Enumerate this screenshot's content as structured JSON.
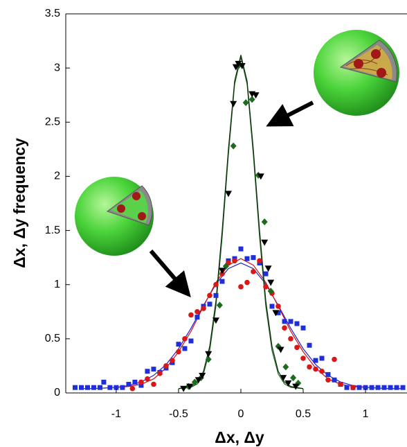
{
  "chart_data": {
    "type": "scatter",
    "xlabel": "Δx, Δy",
    "ylabel": "Δx, Δy frequency",
    "xlim": [
      -1.405,
      1.333
    ],
    "ylim": [
      0,
      3.5
    ],
    "xticks": [
      -1,
      -0.5,
      0,
      0.5,
      1
    ],
    "yticks": [
      0,
      0.5,
      1,
      1.5,
      2,
      2.5,
      3,
      3.5
    ],
    "series": [
      {
        "kind": "line",
        "color": "#1f1fd0",
        "x": [
          -1.3,
          -1.2,
          -1.1,
          -1.0,
          -0.9,
          -0.8,
          -0.7,
          -0.6,
          -0.5,
          -0.4,
          -0.3,
          -0.2,
          -0.1,
          0,
          0.1,
          0.2,
          0.3,
          0.4,
          0.5,
          0.6,
          0.7,
          0.8,
          0.9,
          1.0,
          1.1,
          1.2,
          1.3
        ],
        "values": [
          0.04,
          0.04,
          0.045,
          0.052,
          0.068,
          0.101,
          0.162,
          0.262,
          0.408,
          0.597,
          0.808,
          1.005,
          1.148,
          1.2,
          1.148,
          1.005,
          0.808,
          0.597,
          0.408,
          0.262,
          0.162,
          0.101,
          0.068,
          0.052,
          0.045,
          0.04,
          0.04
        ]
      },
      {
        "kind": "line",
        "color": "#d01010",
        "x": [
          -1.0,
          -0.9,
          -0.8,
          -0.7,
          -0.6,
          -0.5,
          -0.4,
          -0.3,
          -0.2,
          -0.1,
          0,
          0.1,
          0.2,
          0.3,
          0.4,
          0.5,
          0.6,
          0.7,
          0.8,
          0.9,
          1.0
        ],
        "values": [
          0.05,
          0.06,
          0.08,
          0.13,
          0.23,
          0.38,
          0.57,
          0.8,
          1.02,
          1.18,
          1.24,
          1.18,
          1.02,
          0.8,
          0.57,
          0.38,
          0.23,
          0.13,
          0.08,
          0.06,
          0.05
        ]
      },
      {
        "kind": "line",
        "color": "#1d6b1d",
        "x": [
          -0.5,
          -0.45,
          -0.4,
          -0.35,
          -0.3,
          -0.25,
          -0.2,
          -0.15,
          -0.1,
          -0.05,
          0,
          0.05,
          0.1,
          0.15,
          0.2,
          0.25,
          0.3,
          0.35,
          0.4,
          0.45,
          0.5
        ],
        "values": [
          0.04,
          0.045,
          0.052,
          0.083,
          0.175,
          0.39,
          0.8,
          1.44,
          2.2,
          2.85,
          3.1,
          2.85,
          2.2,
          1.44,
          0.8,
          0.39,
          0.175,
          0.083,
          0.052,
          0.045,
          0.04
        ]
      },
      {
        "kind": "line",
        "color": "#0b2a0b",
        "x": [
          -0.5,
          -0.45,
          -0.4,
          -0.35,
          -0.3,
          -0.25,
          -0.2,
          -0.15,
          -0.1,
          -0.05,
          0,
          0.05,
          0.1,
          0.15,
          0.2,
          0.25,
          0.3,
          0.35,
          0.4,
          0.45,
          0.5
        ],
        "values": [
          0.04,
          0.05,
          0.06,
          0.1,
          0.2,
          0.43,
          0.85,
          1.5,
          2.25,
          2.88,
          3.12,
          2.88,
          2.25,
          1.5,
          0.85,
          0.43,
          0.2,
          0.1,
          0.06,
          0.05,
          0.04
        ]
      },
      {
        "kind": "points",
        "marker": "square",
        "color": "#1f2fd8",
        "x": [
          -1.33,
          -1.28,
          -1.23,
          -1.18,
          -1.13,
          -1.1,
          -1.05,
          -1.0,
          -0.95,
          -0.9,
          -0.85,
          -0.8,
          -0.75,
          -0.7,
          -0.65,
          -0.6,
          -0.55,
          -0.5,
          -0.45,
          -0.4,
          -0.35,
          -0.3,
          -0.25,
          -0.2,
          -0.15,
          -0.1,
          -0.05,
          0,
          0.05,
          0.1,
          0.15,
          0.2,
          0.25,
          0.3,
          0.35,
          0.4,
          0.45,
          0.5,
          0.55,
          0.6,
          0.65,
          0.7,
          0.75,
          0.8,
          0.85,
          0.9,
          0.95,
          1.0,
          1.05,
          1.1,
          1.15,
          1.2,
          1.25,
          1.3
        ],
        "values": [
          0.05,
          0.05,
          0.05,
          0.05,
          0.05,
          0.1,
          0.05,
          0.05,
          0.05,
          0.08,
          0.1,
          0.07,
          0.2,
          0.22,
          0.19,
          0.23,
          0.28,
          0.45,
          0.41,
          0.48,
          0.7,
          0.8,
          0.82,
          0.9,
          1.03,
          1.22,
          1.24,
          1.33,
          1.24,
          1.25,
          1.2,
          1.1,
          0.8,
          0.74,
          0.66,
          0.66,
          0.64,
          0.6,
          0.44,
          0.3,
          0.32,
          0.17,
          0.12,
          0.08,
          0.05,
          0.05,
          0.05,
          0.05,
          0.05,
          0.05,
          0.05,
          0.05,
          0.05,
          0.05
        ]
      },
      {
        "kind": "points",
        "marker": "circle",
        "color": "#d81818",
        "x": [
          -0.87,
          -0.8,
          -0.75,
          -0.7,
          -0.65,
          -0.6,
          -0.55,
          -0.5,
          -0.45,
          -0.4,
          -0.35,
          -0.3,
          -0.25,
          -0.2,
          -0.15,
          -0.1,
          -0.05,
          0,
          0.05,
          0.1,
          0.15,
          0.2,
          0.25,
          0.3,
          0.35,
          0.4,
          0.45,
          0.5,
          0.55,
          0.6,
          0.65,
          0.7,
          0.75,
          0.8,
          0.9
        ],
        "values": [
          0.04,
          0.1,
          0.13,
          0.08,
          0.18,
          0.25,
          0.3,
          0.38,
          0.5,
          0.72,
          0.75,
          0.78,
          0.9,
          1.0,
          1.1,
          1.2,
          1.22,
          0.98,
          1.02,
          1.12,
          1.22,
          0.98,
          0.92,
          0.8,
          0.6,
          0.5,
          0.42,
          0.32,
          0.24,
          0.22,
          0.2,
          0.12,
          0.31,
          0.08,
          0.05
        ]
      },
      {
        "kind": "points",
        "marker": "diamond",
        "color": "#1d6b1d",
        "x": [
          -0.42,
          -0.37,
          -0.32,
          -0.26,
          -0.17,
          -0.12,
          -0.06,
          -0.02,
          0.04,
          0.09,
          0.14,
          0.19,
          0.24,
          0.3,
          0.36,
          0.42,
          0.46
        ],
        "values": [
          0.06,
          0.1,
          0.14,
          0.31,
          0.81,
          1.17,
          2.28,
          3.02,
          2.68,
          2.71,
          2.01,
          1.58,
          0.94,
          0.43,
          0.24,
          0.14,
          0.09
        ]
      },
      {
        "kind": "points",
        "marker": "triangle",
        "color": "#000000",
        "x": [
          -0.46,
          -0.41,
          -0.34,
          -0.31,
          -0.26,
          -0.2,
          -0.15,
          -0.1,
          -0.06,
          -0.04,
          -0.02,
          0.01,
          0.09,
          0.12,
          0.16,
          0.19,
          0.22,
          0.24,
          0.28,
          0.32,
          0.34,
          0.38,
          0.44
        ],
        "values": [
          0.04,
          0.06,
          0.12,
          0.16,
          0.36,
          0.67,
          1.13,
          1.84,
          2.67,
          3.01,
          3.04,
          3.02,
          2.76,
          2.75,
          2.0,
          1.39,
          1.15,
          1.02,
          0.74,
          0.4,
          0.14,
          0.09,
          0.06
        ]
      }
    ]
  }
}
